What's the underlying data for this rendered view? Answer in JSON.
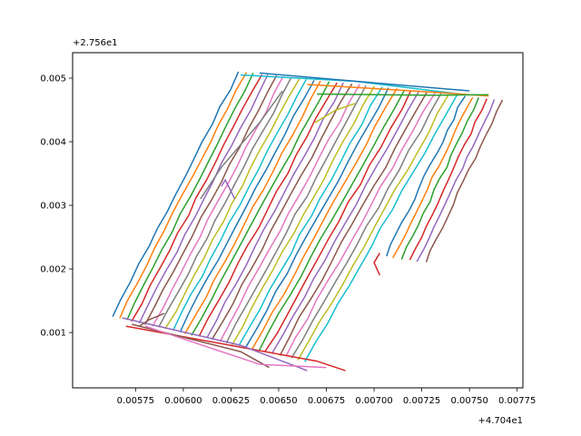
{
  "chart_data": {
    "type": "line",
    "title": "",
    "xlabel": "",
    "ylabel": "",
    "x_offset_label": "+4.704e1",
    "y_offset_label": "+2.756e1",
    "xlim": [
      0.00542,
      0.00778
    ],
    "ylim": [
      0.00013,
      0.0054
    ],
    "x_ticks": [
      0.00575,
      0.006,
      0.00625,
      0.0065,
      0.00675,
      0.007,
      0.00725,
      0.0075,
      0.00775
    ],
    "x_tick_labels": [
      "0.00575",
      "0.00600",
      "0.00625",
      "0.00650",
      "0.00675",
      "0.00700",
      "0.00725",
      "0.00750",
      "0.00775"
    ],
    "y_ticks": [
      0.001,
      0.002,
      0.003,
      0.004,
      0.005
    ],
    "y_tick_labels": [
      "0.001",
      "0.002",
      "0.003",
      "0.004",
      "0.005"
    ],
    "grid": false,
    "legend": "none",
    "palette": [
      "#1f77b4",
      "#ff7f0e",
      "#2ca02c",
      "#d62728",
      "#9467bd",
      "#8c564b",
      "#e377c2",
      "#7f7f7f",
      "#bcbd22",
      "#17becf"
    ],
    "diagonal_track": {
      "count": 36,
      "start_bottom": [
        0.00563,
        0.00125
      ],
      "start_top": [
        0.00629,
        0.0051
      ],
      "end_bottom": [
        0.00685,
        0.0004
      ],
      "end_top": [
        0.00767,
        0.00465
      ],
      "bottom_segment": [
        0.00465,
        0.00345
      ]
    },
    "series": [
      {
        "values": [
          [
            0.0057,
            0.0011
          ],
          [
            0.0067,
            0.00055
          ],
          [
            0.00685,
            0.0004
          ]
        ]
      },
      {
        "values": [
          [
            0.00568,
            0.00123
          ],
          [
            0.0063,
            0.0008
          ],
          [
            0.00665,
            0.0004
          ]
        ]
      },
      {
        "values": [
          [
            0.00573,
            0.00113
          ],
          [
            0.0063,
            0.0007
          ],
          [
            0.00645,
            0.00045
          ]
        ]
      },
      {
        "values": [
          [
            0.0058,
            0.0011
          ],
          [
            0.0064,
            0.0005
          ],
          [
            0.00675,
            0.00045
          ]
        ]
      },
      {
        "values": [
          [
            0.00652,
            0.0048
          ],
          [
            0.0064,
            0.0043
          ],
          [
            0.0062,
            0.0036
          ],
          [
            0.00609,
            0.0031
          ]
        ]
      },
      {
        "values": [
          [
            0.00669,
            0.0043
          ],
          [
            0.0068,
            0.0045
          ],
          [
            0.0069,
            0.0046
          ]
        ]
      },
      {
        "values": [
          [
            0.0063,
            0.00505
          ],
          [
            0.0069,
            0.00495
          ],
          [
            0.00745,
            0.00475
          ]
        ]
      },
      {
        "values": [
          [
            0.0064,
            0.00508
          ],
          [
            0.0071,
            0.0049
          ],
          [
            0.0075,
            0.0048
          ]
        ]
      },
      {
        "values": [
          [
            0.00665,
            0.0049
          ],
          [
            0.0073,
            0.00478
          ],
          [
            0.0076,
            0.00472
          ]
        ]
      },
      {
        "values": [
          [
            0.0067,
            0.00475
          ],
          [
            0.0073,
            0.00473
          ],
          [
            0.0076,
            0.00474
          ]
        ]
      },
      {
        "values": [
          [
            0.00703,
            0.00225
          ],
          [
            0.007,
            0.0021
          ],
          [
            0.00703,
            0.0019
          ]
        ]
      },
      {
        "values": [
          [
            0.0062,
            0.0033
          ],
          [
            0.00622,
            0.0034
          ],
          [
            0.00627,
            0.0031
          ]
        ]
      },
      {
        "values": [
          [
            0.00577,
            0.0011
          ],
          [
            0.00582,
            0.0012
          ],
          [
            0.0059,
            0.0013
          ]
        ]
      }
    ]
  }
}
